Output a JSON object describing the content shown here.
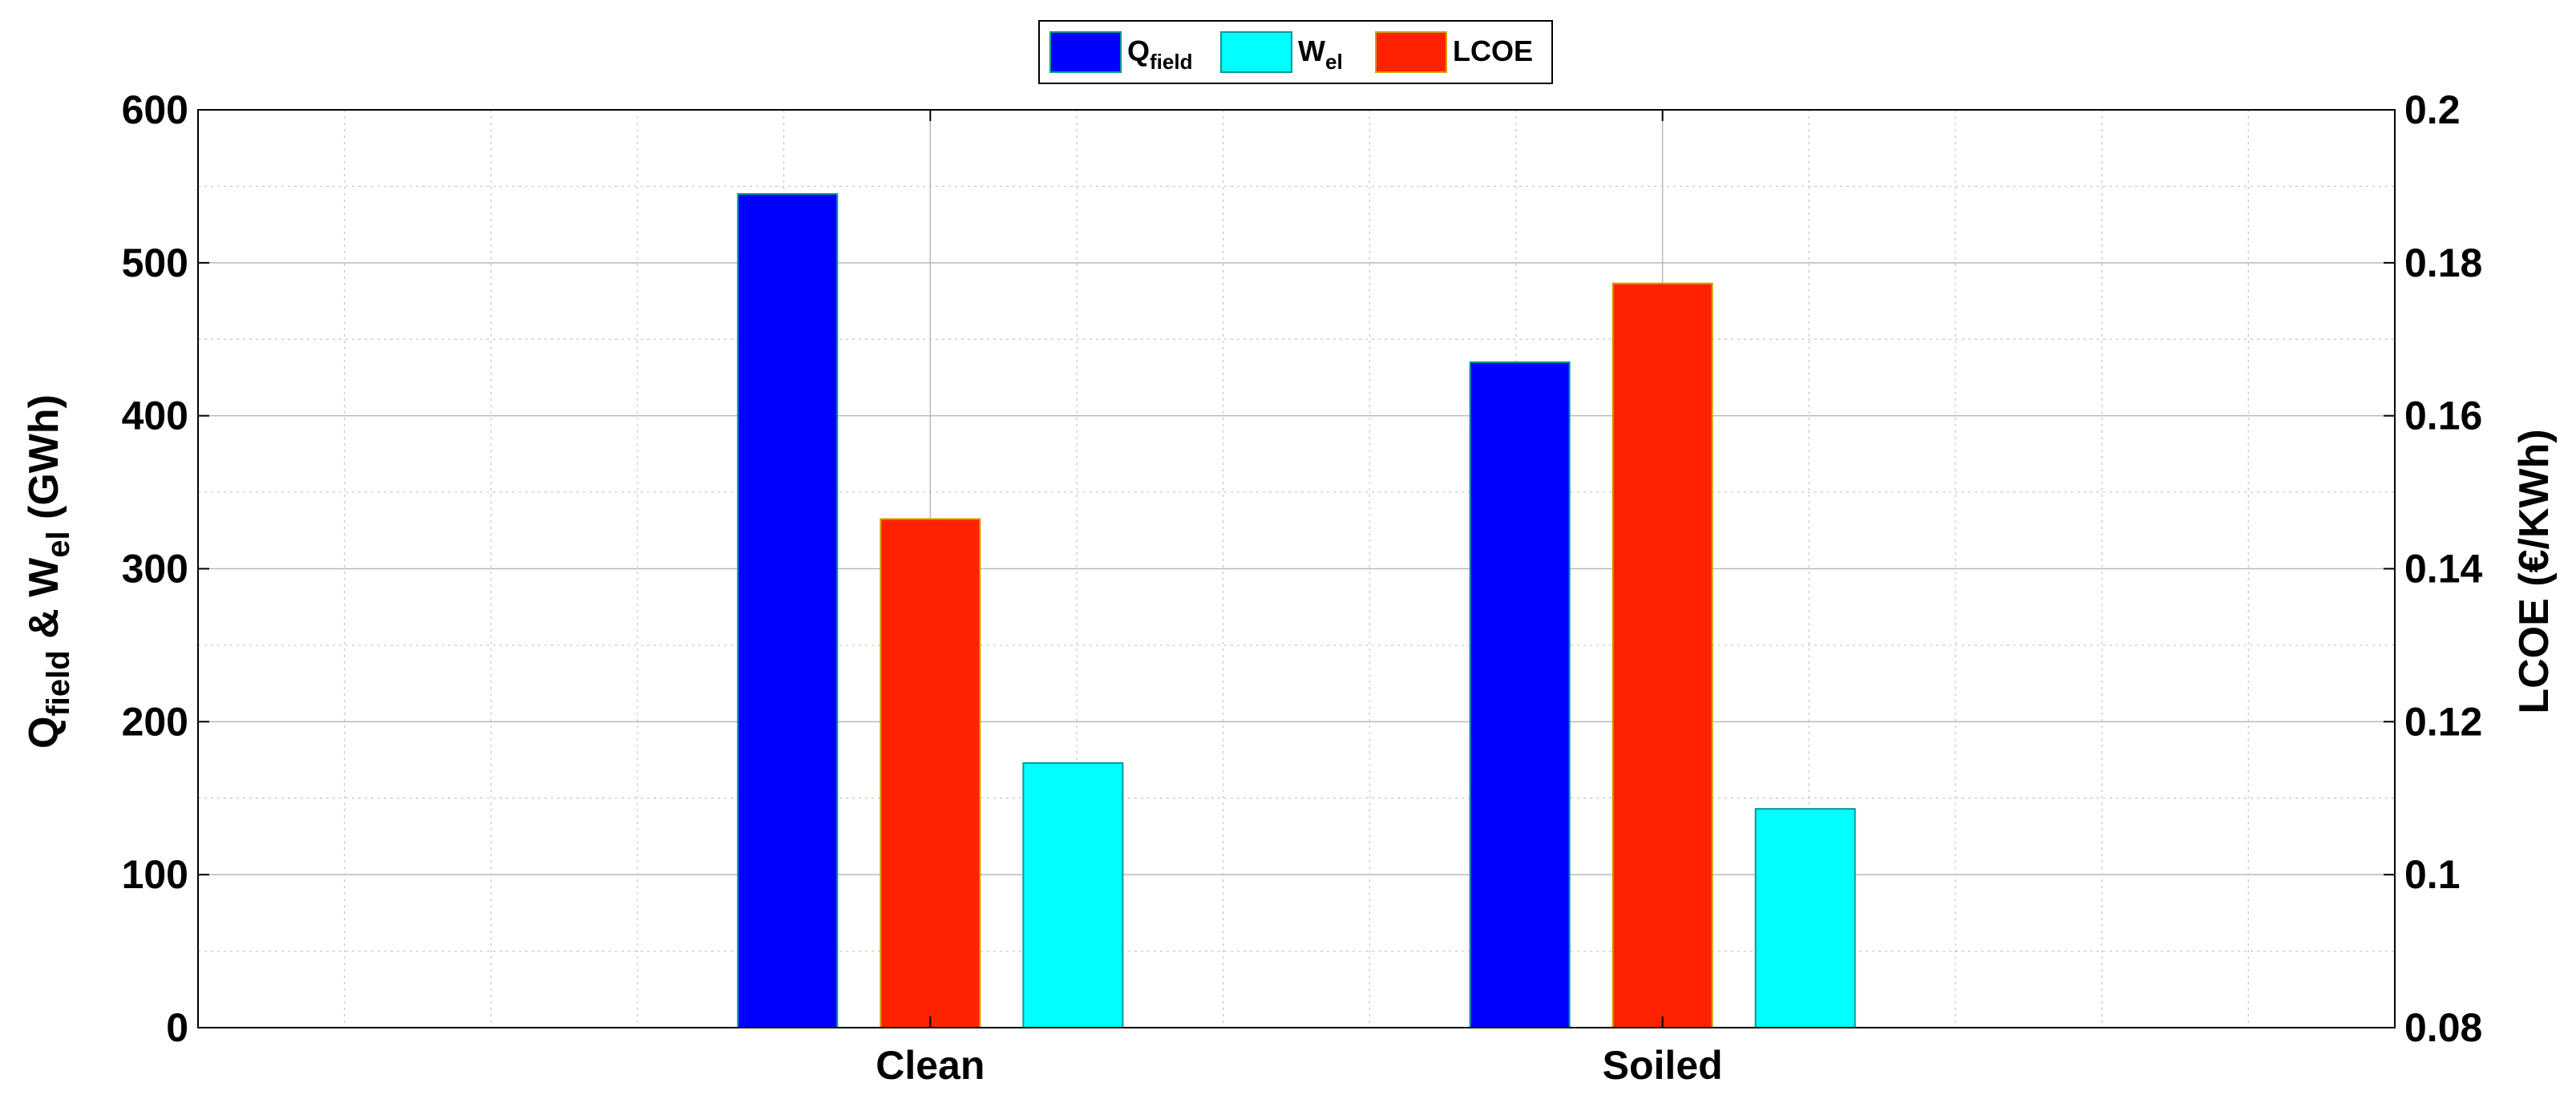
{
  "chart_data": {
    "type": "bar",
    "categories": [
      "Clean",
      "Soiled"
    ],
    "series": [
      {
        "name": "Q",
        "name_sub": "field",
        "axis": "left",
        "color": "#0000ff",
        "values": [
          545,
          435
        ]
      },
      {
        "name": "LCOE",
        "axis": "right",
        "color": "#ff2200",
        "values": [
          0.1465,
          0.1773
        ]
      },
      {
        "name": "W",
        "name_sub": "el",
        "axis": "left",
        "color": "#00ffff",
        "values": [
          173,
          143
        ]
      }
    ],
    "legend_order": [
      0,
      2,
      1
    ],
    "legend_position": "top-center",
    "y_left": {
      "label_parts": {
        "q": "Q",
        "q_sub": "field",
        "amp": " & W",
        "w_sub": "el",
        "unit": " (GWh)"
      },
      "lim": [
        0,
        600
      ],
      "ticks": [
        "0",
        "100",
        "200",
        "300",
        "400",
        "500",
        "600"
      ]
    },
    "y_right": {
      "label": "LCOE (€/KWh)",
      "lim": [
        0.08,
        0.2
      ],
      "ticks": [
        "0.08",
        "0.1",
        "0.12",
        "0.14",
        "0.16",
        "0.18",
        "0.2"
      ]
    },
    "grid": true,
    "minor_grid": true
  }
}
